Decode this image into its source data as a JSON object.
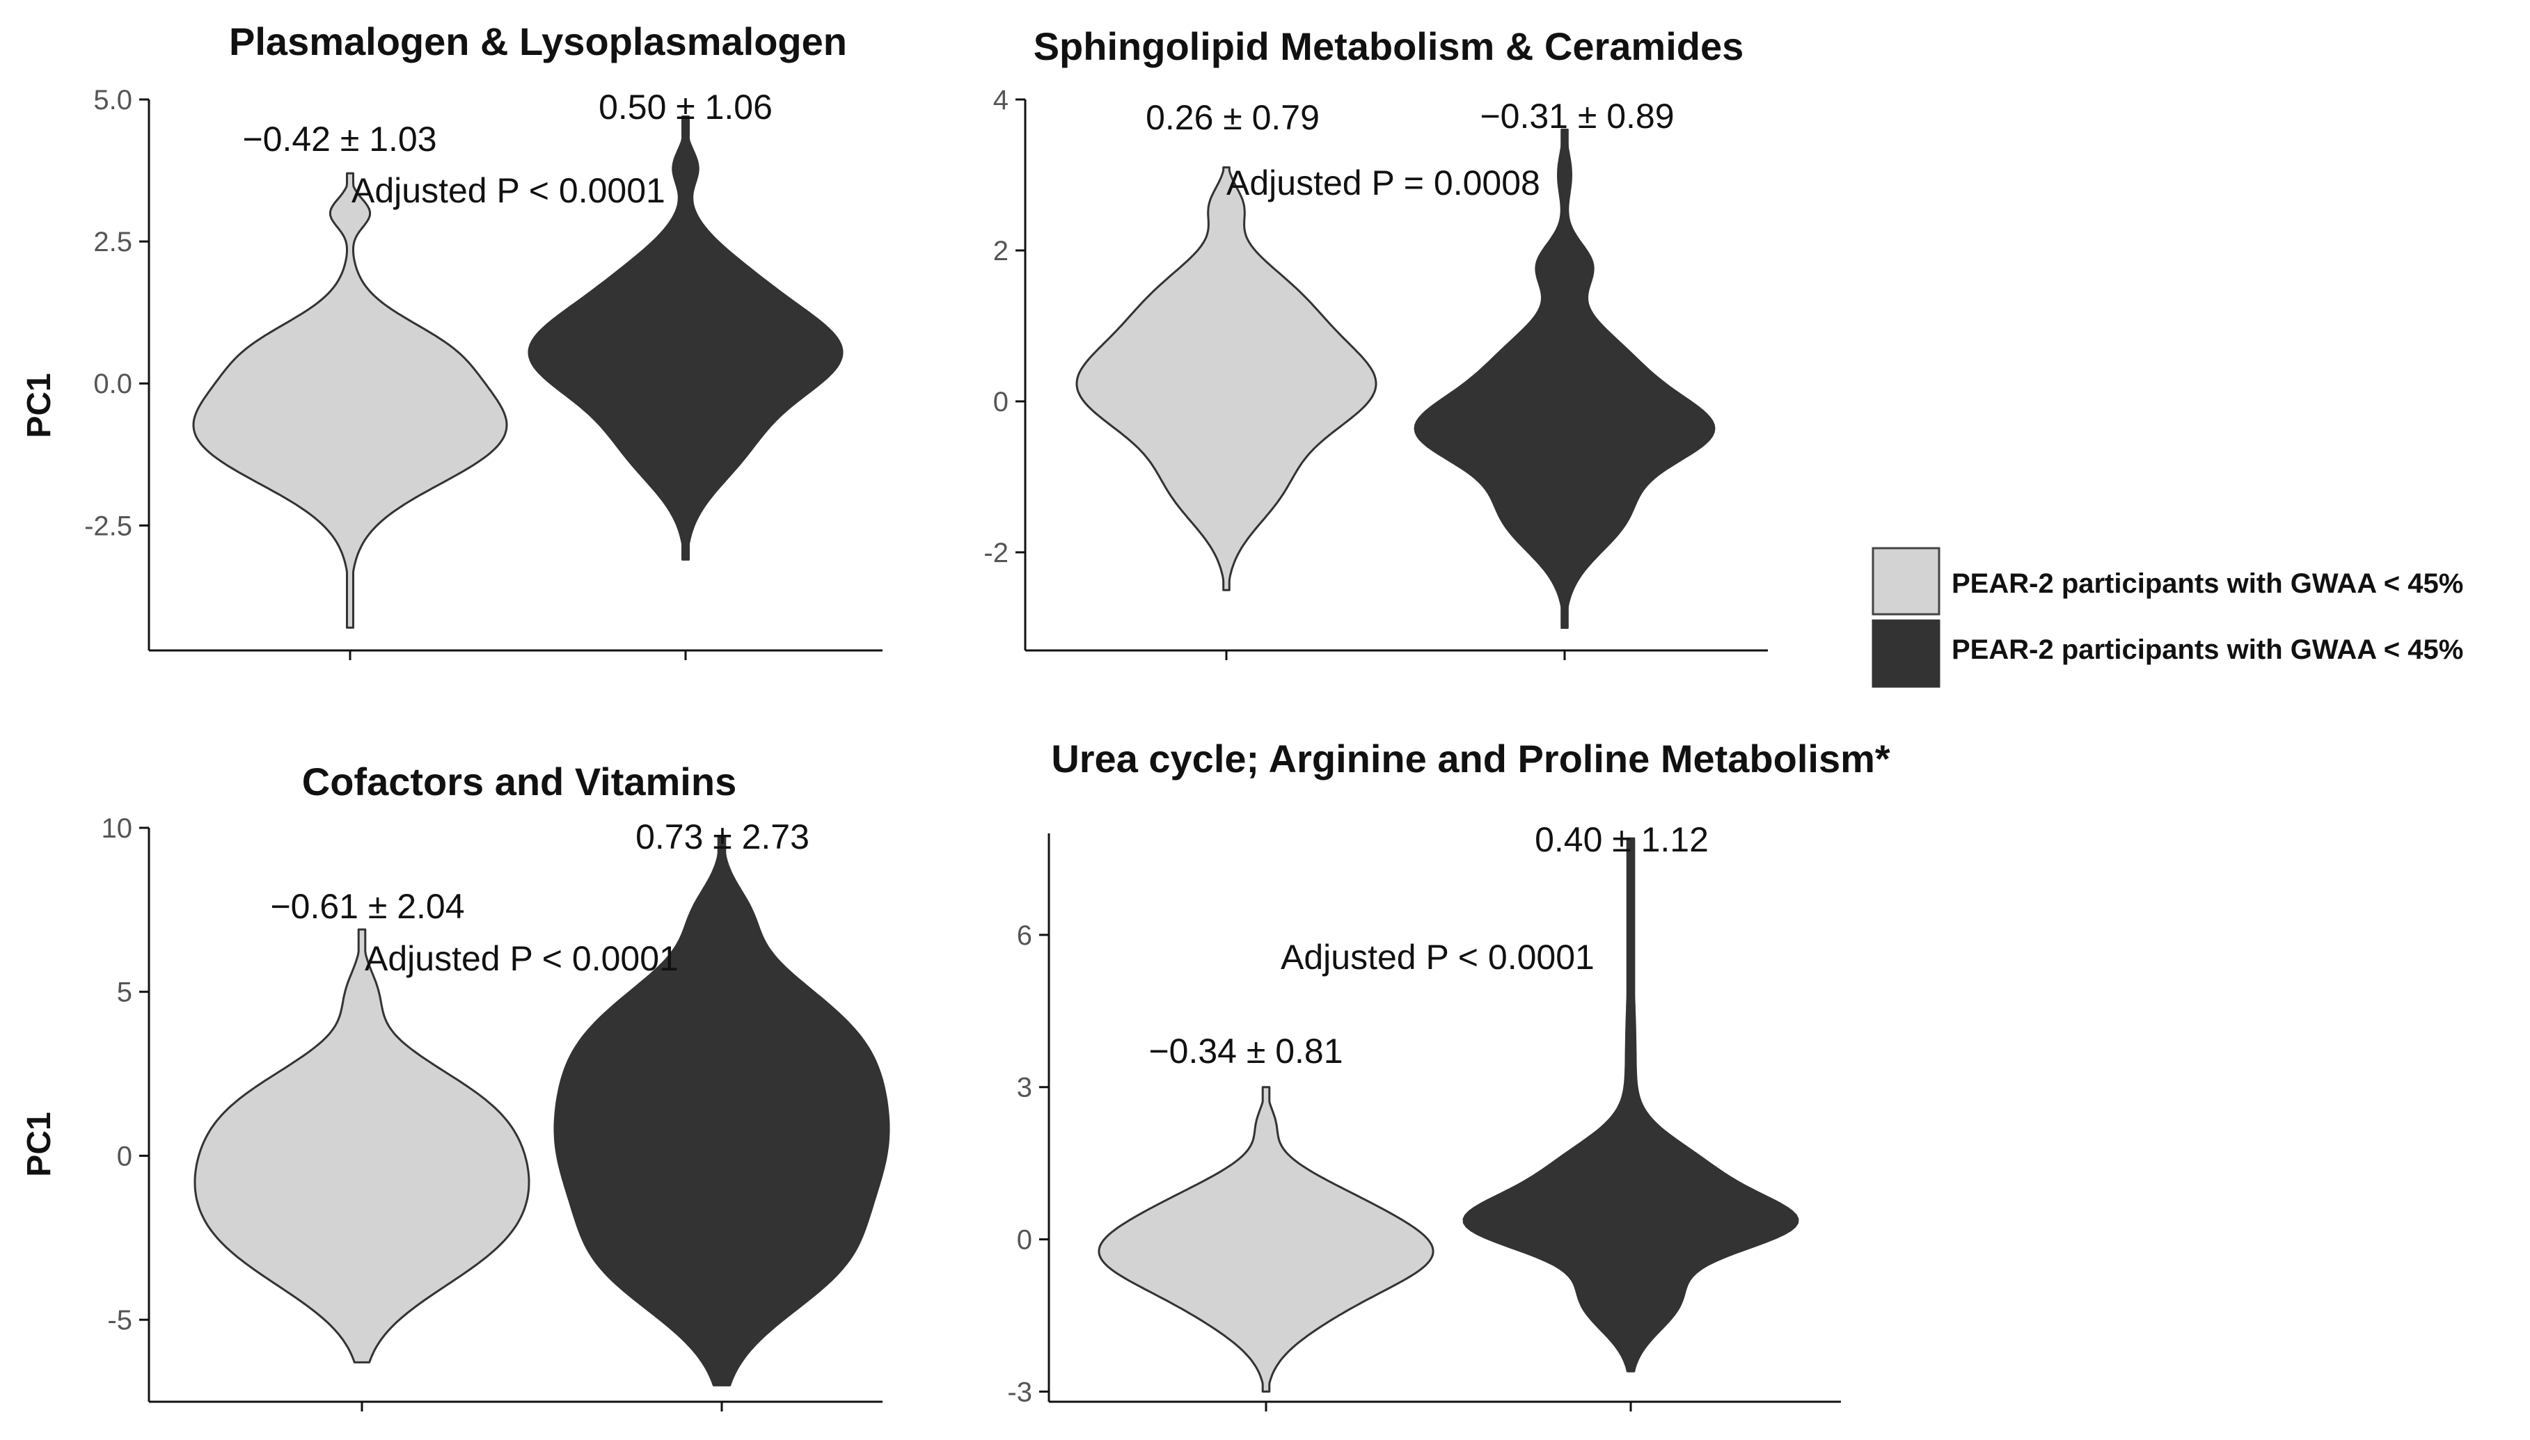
{
  "chart_data": [
    {
      "type": "violin",
      "title": "Plasmalogen & Lysoplasmalogen",
      "ylabel": "PC1",
      "xlabel": "",
      "ylim": [
        -4.7,
        5.0
      ],
      "yticks": [
        -2.5,
        0.0,
        2.5,
        5.0
      ],
      "ytick_labels": [
        "-2.5",
        "0.0",
        "2.5",
        "5.0"
      ],
      "groups": [
        {
          "name": "PEAR-2 participants with GWAA < 45%",
          "color": "#d3d3d3",
          "label": "−0.42 ± 1.03",
          "min": -4.3,
          "max": 3.7,
          "bumps": [
            [
              -0.5,
              1.0,
              1.0
            ],
            [
              0.7,
              0.5,
              0.25
            ],
            [
              -1.3,
              0.7,
              0.3
            ],
            [
              3.0,
              0.25,
              0.15
            ]
          ]
        },
        {
          "name": "PEAR-2 participants with GWAA < 45%",
          "color": "#333333",
          "label": "0.50 ± 1.06",
          "min": -3.1,
          "max": 4.7,
          "bumps": [
            [
              0.55,
              0.85,
              1.0
            ],
            [
              2.0,
              0.6,
              0.2
            ],
            [
              -1.2,
              0.7,
              0.3
            ],
            [
              3.8,
              0.3,
              0.08
            ]
          ]
        }
      ],
      "annotation": "Adjusted P < 0.0001"
    },
    {
      "type": "violin",
      "title": "Sphingolipid Metabolism & Ceramides",
      "ylabel": "",
      "xlabel": "",
      "ylim": [
        -3.3,
        4.0
      ],
      "yticks": [
        -2,
        0,
        2,
        4
      ],
      "ytick_labels": [
        "-2",
        "0",
        "2",
        "4"
      ],
      "groups": [
        {
          "name": "PEAR-2 participants with GWAA < 45%",
          "color": "#d3d3d3",
          "label": "0.26 ± 0.79",
          "min": -2.5,
          "max": 3.1,
          "bumps": [
            [
              0.2,
              0.65,
              1.0
            ],
            [
              1.4,
              0.5,
              0.35
            ],
            [
              -1.2,
              0.5,
              0.3
            ],
            [
              2.6,
              0.25,
              0.1
            ]
          ]
        },
        {
          "name": "PEAR-2 participants with GWAA < 45%",
          "color": "#333333",
          "label": "−0.31 ± 0.89",
          "min": -3.0,
          "max": 3.6,
          "bumps": [
            [
              -0.4,
              0.45,
              1.0
            ],
            [
              0.5,
              0.5,
              0.45
            ],
            [
              -1.5,
              0.5,
              0.45
            ],
            [
              1.8,
              0.3,
              0.2
            ],
            [
              3.0,
              0.3,
              0.05
            ]
          ]
        }
      ],
      "annotation": "Adjusted P = 0.0008"
    },
    {
      "type": "violin",
      "title": "Cofactors and Vitamins",
      "ylabel": "PC1",
      "xlabel": "",
      "ylim": [
        -7.5,
        10.0
      ],
      "yticks": [
        -5,
        0,
        5,
        10
      ],
      "ytick_labels": [
        "-5",
        "0",
        "5",
        "10"
      ],
      "groups": [
        {
          "name": "PEAR-2 participants with GWAA < 45%",
          "color": "#d3d3d3",
          "label": "−0.61 ± 2.04",
          "min": -6.3,
          "max": 6.9,
          "bumps": [
            [
              -0.7,
              2.0,
              1.0
            ],
            [
              1.8,
              1.3,
              0.35
            ],
            [
              -3.2,
              1.4,
              0.35
            ],
            [
              5.0,
              0.7,
              0.08
            ]
          ]
        },
        {
          "name": "PEAR-2 participants with GWAA < 45%",
          "color": "#333333",
          "label": "0.73 ± 2.73",
          "min": -7.0,
          "max": 9.7,
          "bumps": [
            [
              0.0,
              2.2,
              0.9
            ],
            [
              3.7,
              1.9,
              0.65
            ],
            [
              -3.5,
              1.6,
              0.5
            ],
            [
              7.5,
              0.8,
              0.1
            ]
          ]
        }
      ],
      "annotation": "Adjusted P < 0.0001"
    },
    {
      "type": "violin",
      "title": "Urea cycle; Arginine and Proline Metabolism*",
      "ylabel": "",
      "xlabel": "",
      "ylim": [
        -3.2,
        8.0
      ],
      "yticks": [
        -3,
        0,
        3,
        6
      ],
      "ytick_labels": [
        "-3",
        "0",
        "3",
        "6"
      ],
      "groups": [
        {
          "name": "PEAR-2 participants with GWAA < 45%",
          "color": "#d3d3d3",
          "label": "−0.34 ± 0.81",
          "min": -3.0,
          "max": 3.0,
          "bumps": [
            [
              -0.3,
              0.7,
              1.0
            ],
            [
              0.8,
              0.6,
              0.35
            ],
            [
              -1.5,
              0.6,
              0.25
            ],
            [
              2.3,
              0.3,
              0.05
            ]
          ]
        },
        {
          "name": "PEAR-2 participants with GWAA < 45%",
          "color": "#333333",
          "label": "0.40 ± 1.12",
          "min": -2.6,
          "max": 7.9,
          "bumps": [
            [
              0.3,
              0.55,
              0.95
            ],
            [
              1.4,
              0.6,
              0.4
            ],
            [
              -1.2,
              0.6,
              0.3
            ],
            [
              3.5,
              1.5,
              0.03
            ]
          ]
        }
      ],
      "annotation": "Adjusted P < 0.0001"
    }
  ],
  "legend": {
    "position": "right",
    "items": [
      {
        "label": "PEAR-2 participants with GWAA < 45%",
        "color": "#d3d3d3"
      },
      {
        "label": "PEAR-2 participants with GWAA < 45%",
        "color": "#333333"
      }
    ]
  }
}
